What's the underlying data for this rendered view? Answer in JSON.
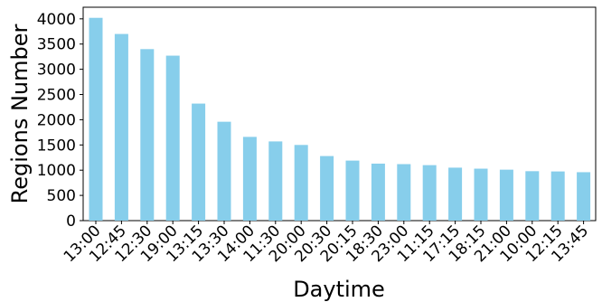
{
  "chart_data": {
    "type": "bar",
    "xlabel": "Daytime",
    "ylabel": "Regions Number",
    "categories": [
      "13:00",
      "12:45",
      "12:30",
      "19:00",
      "13:15",
      "13:30",
      "14:00",
      "11:30",
      "20:00",
      "20:30",
      "20:15",
      "18:30",
      "23:00",
      "11:15",
      "17:15",
      "18:15",
      "21:00",
      "10:00",
      "12:15",
      "13:45"
    ],
    "values": [
      4020,
      3700,
      3400,
      3270,
      2320,
      1960,
      1660,
      1570,
      1500,
      1280,
      1190,
      1130,
      1120,
      1100,
      1050,
      1030,
      1010,
      980,
      975,
      960
    ],
    "yticks": [
      0,
      500,
      1000,
      1500,
      2000,
      2500,
      3000,
      3500,
      4000
    ],
    "ylim": [
      0,
      4230
    ],
    "bar_color": "#87ceeb",
    "grid": false,
    "legend": "none"
  }
}
